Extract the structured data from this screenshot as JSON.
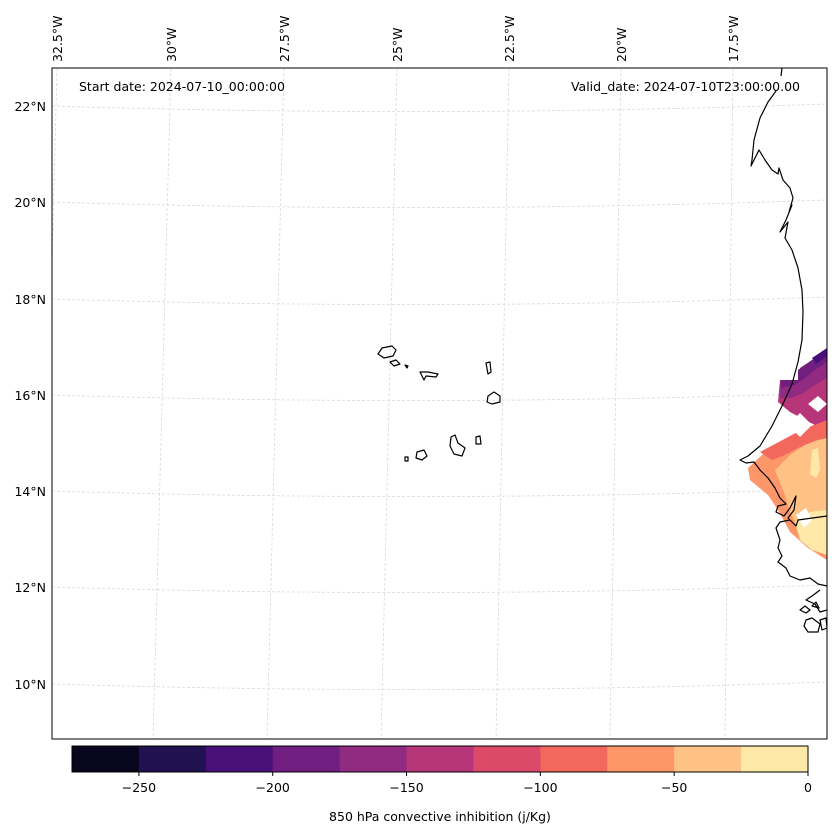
{
  "map": {
    "start_label": "Start date: 2024-07-10_00:00:00",
    "valid_label": "Valid_date: 2024-07-10T23:00:00.00",
    "lon_labels": [
      "32.5°W",
      "30°W",
      "27.5°W",
      "25°W",
      "22.5°W",
      "20°W",
      "17.5°W"
    ],
    "lat_labels": [
      "22°N",
      "20°N",
      "18°N",
      "16°N",
      "14°N",
      "12°N",
      "10°N"
    ],
    "extent": {
      "lon_min": -33.0,
      "lon_max": -16.0,
      "lat_min": 9.0,
      "lat_max": 22.8
    },
    "gridline_color": "#d9d9d9",
    "coastline_color": "#000000"
  },
  "colorbar": {
    "label": "850 hPa convective inhibition (j/Kg)",
    "min": -275,
    "max": 0,
    "levels": [
      -275,
      -250,
      -225,
      -200,
      -175,
      -150,
      -125,
      -100,
      -75,
      -50,
      -25,
      0
    ],
    "colors": [
      "#07061c",
      "#221150",
      "#4a1079",
      "#701f81",
      "#912b81",
      "#b63679",
      "#dc4a6a",
      "#f3685c",
      "#fd9668",
      "#fec287",
      "#fde8a8"
    ],
    "tick_values": [
      -250,
      -200,
      -150,
      -100,
      -50,
      0
    ],
    "tick_labels": [
      "−250",
      "−200",
      "−150",
      "−100",
      "−50",
      "0"
    ]
  },
  "chart_data": {
    "type": "heatmap",
    "title": "",
    "variable": "850 hPa convective inhibition (j/Kg)",
    "start_date": "2024-07-10_00:00:00",
    "valid_date": "2024-07-10T23:00:00.00",
    "x_ticks": [
      "32.5°W",
      "30°W",
      "27.5°W",
      "25°W",
      "22.5°W",
      "20°W",
      "17.5°W"
    ],
    "y_ticks": [
      "22°N",
      "20°N",
      "18°N",
      "16°N",
      "14°N",
      "12°N",
      "10°N"
    ],
    "value_range": [
      -275,
      0
    ],
    "regions": [
      {
        "name": "northern coastal band near 16°N",
        "approx_values": [
          -225,
          -175,
          -150
        ]
      },
      {
        "name": "coastal Senegal 14°N",
        "approx_values": [
          -100,
          -75,
          -50
        ]
      },
      {
        "name": "inland Gambia / southern Senegal 13°N",
        "approx_values": [
          -50,
          -25,
          0
        ]
      }
    ]
  }
}
